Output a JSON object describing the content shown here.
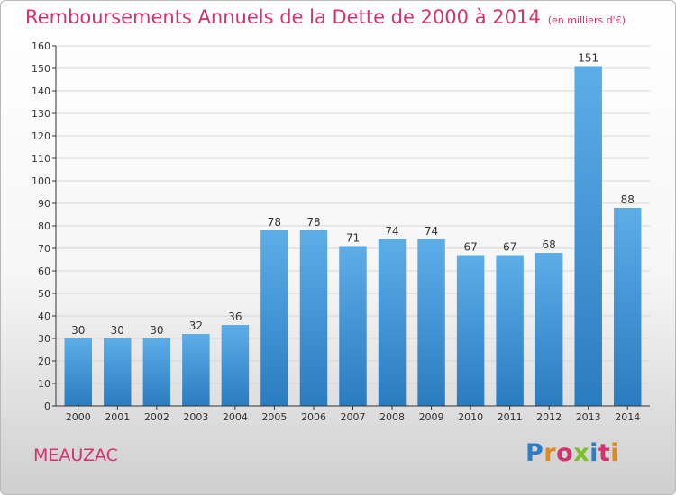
{
  "title": "Remboursements Annuels de la Dette de 2000 à 2014",
  "unit_note": "(en milliers d'€)",
  "place": "MEAUZAC",
  "logo": "Proxiti",
  "colors": {
    "title": "#d2336f",
    "bar_top": "#5dade8",
    "bar_bottom": "#2a7cc0",
    "grid": "#d6d6d6",
    "axis": "#333333"
  },
  "chart_data": {
    "type": "bar",
    "title": "Remboursements Annuels de la Dette de 2000 à 2014",
    "categories": [
      "2000",
      "2001",
      "2002",
      "2003",
      "2004",
      "2005",
      "2006",
      "2007",
      "2008",
      "2009",
      "2010",
      "2011",
      "2012",
      "2013",
      "2014"
    ],
    "values": [
      30,
      30,
      30,
      32,
      36,
      78,
      78,
      71,
      74,
      74,
      67,
      67,
      68,
      151,
      88
    ],
    "ylim": [
      0,
      160
    ],
    "yticks": [
      0,
      10,
      20,
      30,
      40,
      50,
      60,
      70,
      80,
      90,
      100,
      110,
      120,
      130,
      140,
      150,
      160
    ],
    "grid": true,
    "data_labels": true
  }
}
